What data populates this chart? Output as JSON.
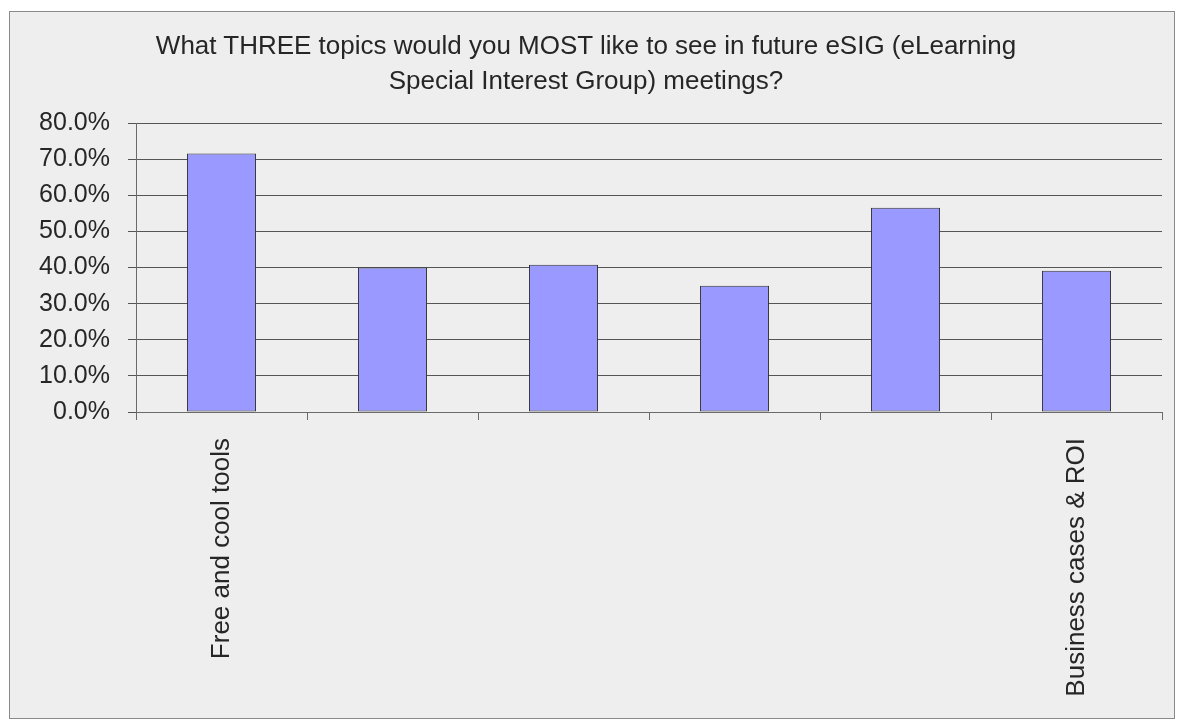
{
  "chart_data": {
    "type": "bar",
    "title": "What THREE topics would you MOST like to see in future eSIG (eLearning Special Interest Group) meetings?",
    "categories": [
      "Free and cool tools",
      null,
      null,
      null,
      null,
      "Business cases & ROI"
    ],
    "values": [
      71.6,
      40.0,
      40.8,
      35.0,
      56.6,
      39.1
    ],
    "color": "#9999ff",
    "ylim": [
      0,
      80
    ],
    "yticks": [
      {
        "value": 0,
        "label": "0.0%"
      },
      {
        "value": 10,
        "label": "10.0%"
      },
      {
        "value": 20,
        "label": "20.0%"
      },
      {
        "value": 30,
        "label": "30.0%"
      },
      {
        "value": 40,
        "label": "40.0%"
      },
      {
        "value": 50,
        "label": "50.0%"
      },
      {
        "value": 60,
        "label": "60.0%"
      },
      {
        "value": 70,
        "label": "70.0%"
      },
      {
        "value": 80,
        "label": "80.0%"
      }
    ],
    "grid": "y"
  }
}
